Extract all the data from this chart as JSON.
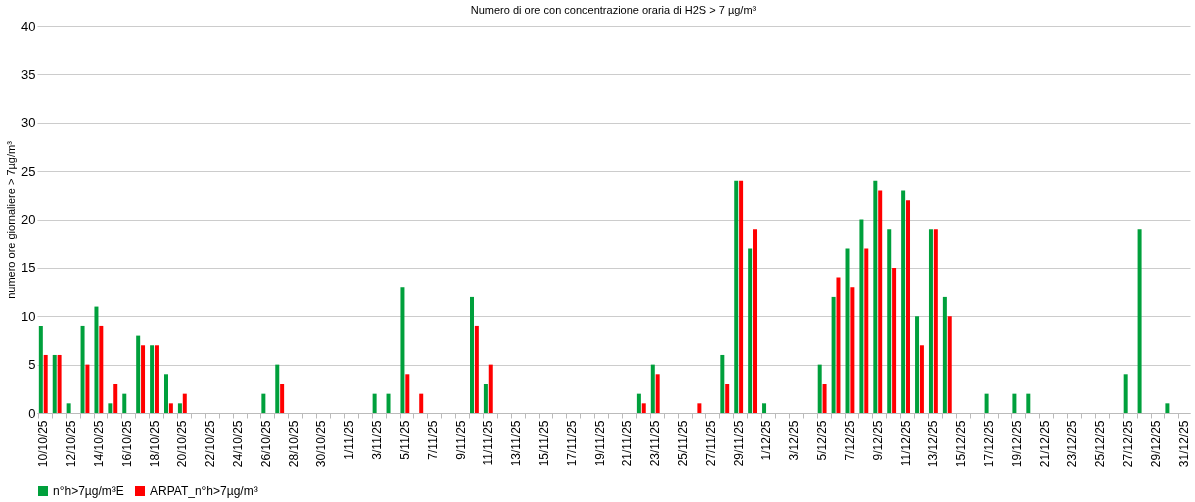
{
  "chart_data": {
    "type": "bar",
    "title": "Numero di ore con concentrazione oraria di H2S > 7 µg/m³",
    "ylabel": "numero ore giornaliere > 7µg/m³",
    "categories": [
      "10/10/25",
      null,
      "12/10/25",
      null,
      "14/10/25",
      null,
      "16/10/25",
      null,
      "18/10/25",
      null,
      "20/10/25",
      null,
      "22/10/25",
      null,
      "24/10/25",
      null,
      "26/10/25",
      null,
      "28/10/25",
      null,
      "30/10/25",
      null,
      "1/11/25",
      null,
      "3/11/25",
      null,
      "5/11/25",
      null,
      "7/11/25",
      null,
      "9/11/25",
      null,
      "11/11/25",
      null,
      "13/11/25",
      null,
      "15/11/25",
      null,
      "17/11/25",
      null,
      "19/11/25",
      null,
      "21/11/25",
      null,
      "23/11/25",
      null,
      "25/11/25",
      null,
      "27/11/25",
      null,
      "29/11/25",
      null,
      "1/12/25",
      null,
      "3/12/25",
      null,
      "5/12/25",
      null,
      "7/12/25",
      null,
      "9/12/25",
      null,
      "11/12/25",
      null,
      "13/12/25",
      null,
      "15/12/25",
      null,
      "17/12/25",
      null,
      "19/12/25",
      null,
      "21/12/25",
      null,
      "23/12/25",
      null,
      "25/12/25",
      null,
      "27/12/25",
      null,
      "29/12/25",
      null,
      "31/12/25"
    ],
    "series": [
      {
        "name": "n°h>7µg/m³E",
        "color": "#00a03c",
        "values": [
          9,
          6,
          1,
          9,
          11,
          1,
          2,
          8,
          7,
          4,
          1,
          0,
          0,
          0,
          0,
          0,
          2,
          5,
          0,
          0,
          0,
          0,
          0,
          0,
          2,
          2,
          13,
          0,
          0,
          0,
          0,
          12,
          3,
          0,
          0,
          0,
          0,
          0,
          0,
          0,
          0,
          0,
          0,
          2,
          5,
          0,
          0,
          0,
          0,
          6,
          24,
          17,
          1,
          0,
          0,
          0,
          5,
          12,
          17,
          20,
          24,
          19,
          23,
          10,
          19,
          12,
          0,
          0,
          2,
          0,
          2,
          2,
          0,
          0,
          0,
          0,
          0,
          0,
          4,
          19,
          0,
          1,
          0
        ]
      },
      {
        "name": "ARPAT_n°h>7µg/m³",
        "color": "#ff0000",
        "values": [
          6,
          6,
          0,
          5,
          9,
          3,
          0,
          7,
          7,
          1,
          2,
          0,
          0,
          0,
          0,
          0,
          0,
          3,
          0,
          0,
          0,
          0,
          0,
          0,
          0,
          0,
          4,
          2,
          0,
          0,
          0,
          9,
          5,
          0,
          0,
          0,
          0,
          0,
          0,
          0,
          0,
          0,
          0,
          1,
          4,
          0,
          0,
          1,
          0,
          3,
          24,
          19,
          0,
          0,
          0,
          0,
          3,
          14,
          13,
          17,
          23,
          15,
          22,
          7,
          19,
          10,
          0,
          0,
          0,
          0,
          0,
          0,
          0,
          0,
          0,
          0,
          0,
          0,
          0,
          0,
          0,
          0,
          0
        ]
      }
    ],
    "ylim": [
      0,
      40
    ],
    "yticks": [
      0,
      5,
      10,
      15,
      20,
      25,
      30,
      35,
      40
    ],
    "grid": "y",
    "legend": "bottom"
  }
}
